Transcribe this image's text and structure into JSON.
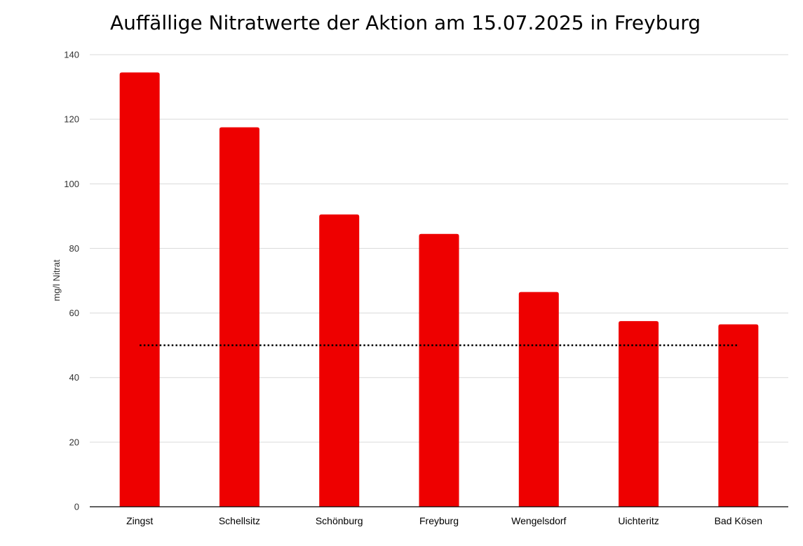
{
  "chart_data": {
    "type": "bar",
    "title": "Auffällige Nitratwerte der Aktion am 15.07.2025 in Freyburg",
    "ylabel": "mg/l Nitrat",
    "xlabel": "",
    "categories": [
      "Zingst",
      "Schellsitz",
      "Schönburg",
      "Freyburg",
      "Wengelsdorf",
      "Uichteritz",
      "Bad Kösen"
    ],
    "values": [
      134.5,
      117.5,
      90.5,
      84.5,
      66.5,
      57.5,
      56.5
    ],
    "ylim": [
      0,
      140
    ],
    "yticks": [
      0,
      20,
      40,
      60,
      80,
      100,
      120,
      140
    ],
    "grid": true,
    "reference_line": {
      "value": 50,
      "style": "dotted"
    },
    "colors": {
      "bar": "#ee0000",
      "grid": "#d9d9d9",
      "axis": "#000000",
      "reference_line": "#000000"
    }
  }
}
